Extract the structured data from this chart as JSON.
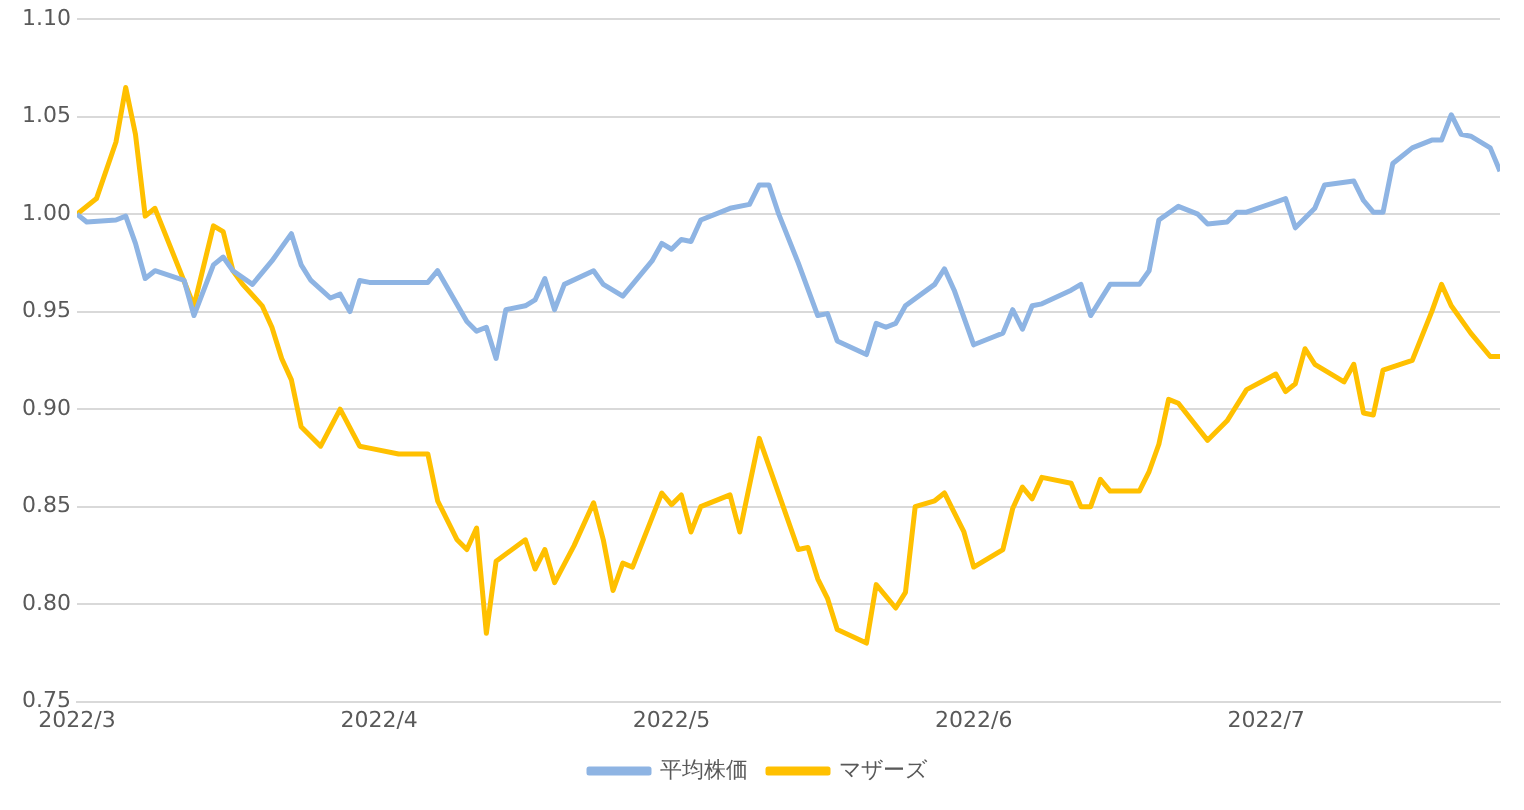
{
  "chart_data": {
    "type": "line",
    "xlim": [
      "2022-03-01",
      "2022-07-25"
    ],
    "xticks": [
      {
        "value": "2022-03-01",
        "label": "2022/3"
      },
      {
        "value": "2022-04-01",
        "label": "2022/4"
      },
      {
        "value": "2022-05-01",
        "label": "2022/5"
      },
      {
        "value": "2022-06-01",
        "label": "2022/6"
      },
      {
        "value": "2022-07-01",
        "label": "2022/7"
      }
    ],
    "ylim": [
      0.75,
      1.1
    ],
    "yticks": [
      {
        "value": 0.75,
        "label": "0.75"
      },
      {
        "value": 0.8,
        "label": "0.80"
      },
      {
        "value": 0.85,
        "label": "0.85"
      },
      {
        "value": 0.9,
        "label": "0.90"
      },
      {
        "value": 0.95,
        "label": "0.95"
      },
      {
        "value": 1.0,
        "label": "1.00"
      },
      {
        "value": 1.05,
        "label": "1.05"
      },
      {
        "value": 1.1,
        "label": "1.10"
      }
    ],
    "grid": "y",
    "legend": "bottom",
    "marker": "none",
    "line_style": "solid",
    "series": [
      {
        "name": "平均株価",
        "color": "#8eb4e3",
        "x": [
          "2022-03-01",
          "2022-03-02",
          "2022-03-05",
          "2022-03-06",
          "2022-03-07",
          "2022-03-08",
          "2022-03-09",
          "2022-03-12",
          "2022-03-13",
          "2022-03-15",
          "2022-03-16",
          "2022-03-17",
          "2022-03-19",
          "2022-03-21",
          "2022-03-23",
          "2022-03-24",
          "2022-03-25",
          "2022-03-27",
          "2022-03-28",
          "2022-03-29",
          "2022-03-30",
          "2022-03-31",
          "2022-04-06",
          "2022-04-07",
          "2022-04-10",
          "2022-04-11",
          "2022-04-12",
          "2022-04-13",
          "2022-04-14",
          "2022-04-16",
          "2022-04-17",
          "2022-04-18",
          "2022-04-19",
          "2022-04-20",
          "2022-04-23",
          "2022-04-24",
          "2022-04-26",
          "2022-04-29",
          "2022-04-30",
          "2022-05-01",
          "2022-05-02",
          "2022-05-03",
          "2022-05-04",
          "2022-05-07",
          "2022-05-09",
          "2022-05-10",
          "2022-05-11",
          "2022-05-12",
          "2022-05-14",
          "2022-05-16",
          "2022-05-17",
          "2022-05-18",
          "2022-05-21",
          "2022-05-22",
          "2022-05-23",
          "2022-05-24",
          "2022-05-25",
          "2022-05-28",
          "2022-05-29",
          "2022-05-30",
          "2022-06-01",
          "2022-06-03",
          "2022-06-04",
          "2022-06-05",
          "2022-06-06",
          "2022-06-07",
          "2022-06-08",
          "2022-06-11",
          "2022-06-12",
          "2022-06-13",
          "2022-06-15",
          "2022-06-18",
          "2022-06-19",
          "2022-06-20",
          "2022-06-22",
          "2022-06-24",
          "2022-06-25",
          "2022-06-27",
          "2022-06-28",
          "2022-06-29",
          "2022-07-03",
          "2022-07-04",
          "2022-07-06",
          "2022-07-07",
          "2022-07-10",
          "2022-07-11",
          "2022-07-12",
          "2022-07-13",
          "2022-07-14",
          "2022-07-16",
          "2022-07-18",
          "2022-07-19",
          "2022-07-20",
          "2022-07-21",
          "2022-07-22",
          "2022-07-24",
          "2022-07-25"
        ],
        "values": [
          1.0,
          0.996,
          0.997,
          0.999,
          0.985,
          0.967,
          0.971,
          0.966,
          0.948,
          0.974,
          0.978,
          0.971,
          0.964,
          0.976,
          0.99,
          0.974,
          0.966,
          0.957,
          0.959,
          0.95,
          0.966,
          0.965,
          0.965,
          0.971,
          0.945,
          0.94,
          0.942,
          0.926,
          0.951,
          0.953,
          0.956,
          0.967,
          0.951,
          0.964,
          0.971,
          0.964,
          0.958,
          0.976,
          0.985,
          0.982,
          0.987,
          0.986,
          0.997,
          1.003,
          1.005,
          1.015,
          1.015,
          1.0,
          0.975,
          0.948,
          0.949,
          0.935,
          0.928,
          0.944,
          0.942,
          0.944,
          0.953,
          0.964,
          0.972,
          0.961,
          0.933,
          0.937,
          0.939,
          0.951,
          0.941,
          0.953,
          0.954,
          0.961,
          0.964,
          0.948,
          0.964,
          0.964,
          0.971,
          0.997,
          1.004,
          1.0,
          0.995,
          0.996,
          1.001,
          1.001,
          1.008,
          0.993,
          1.003,
          1.015,
          1.017,
          1.007,
          1.001,
          1.001,
          1.026,
          1.034,
          1.038,
          1.038,
          1.051,
          1.041,
          1.04,
          1.034,
          1.022
        ]
      },
      {
        "name": "マザーズ",
        "color": "#ffc000",
        "x": [
          "2022-03-01",
          "2022-03-03",
          "2022-03-05",
          "2022-03-06",
          "2022-03-07",
          "2022-03-08",
          "2022-03-09",
          "2022-03-13",
          "2022-03-15",
          "2022-03-16",
          "2022-03-17",
          "2022-03-18",
          "2022-03-20",
          "2022-03-21",
          "2022-03-22",
          "2022-03-23",
          "2022-03-24",
          "2022-03-26",
          "2022-03-28",
          "2022-03-30",
          "2022-03-31",
          "2022-04-03",
          "2022-04-06",
          "2022-04-07",
          "2022-04-09",
          "2022-04-10",
          "2022-04-11",
          "2022-04-12",
          "2022-04-13",
          "2022-04-16",
          "2022-04-17",
          "2022-04-18",
          "2022-04-19",
          "2022-04-21",
          "2022-04-23",
          "2022-04-24",
          "2022-04-25",
          "2022-04-26",
          "2022-04-27",
          "2022-04-30",
          "2022-05-01",
          "2022-05-02",
          "2022-05-03",
          "2022-05-04",
          "2022-05-07",
          "2022-05-08",
          "2022-05-10",
          "2022-05-14",
          "2022-05-15",
          "2022-05-16",
          "2022-05-17",
          "2022-05-18",
          "2022-05-21",
          "2022-05-22",
          "2022-05-24",
          "2022-05-25",
          "2022-05-26",
          "2022-05-28",
          "2022-05-29",
          "2022-05-31",
          "2022-06-01",
          "2022-06-04",
          "2022-06-05",
          "2022-06-06",
          "2022-06-07",
          "2022-06-08",
          "2022-06-11",
          "2022-06-12",
          "2022-06-13",
          "2022-06-14",
          "2022-06-15",
          "2022-06-18",
          "2022-06-19",
          "2022-06-20",
          "2022-06-21",
          "2022-06-22",
          "2022-06-25",
          "2022-06-27",
          "2022-06-29",
          "2022-07-02",
          "2022-07-03",
          "2022-07-04",
          "2022-07-05",
          "2022-07-06",
          "2022-07-09",
          "2022-07-10",
          "2022-07-11",
          "2022-07-12",
          "2022-07-13",
          "2022-07-16",
          "2022-07-18",
          "2022-07-19",
          "2022-07-20",
          "2022-07-22",
          "2022-07-24",
          "2022-07-25"
        ],
        "values": [
          1.0,
          1.008,
          1.037,
          1.065,
          1.041,
          0.999,
          1.003,
          0.953,
          0.994,
          0.991,
          0.971,
          0.964,
          0.953,
          0.942,
          0.926,
          0.915,
          0.891,
          0.881,
          0.9,
          0.881,
          0.88,
          0.877,
          0.877,
          0.853,
          0.833,
          0.828,
          0.839,
          0.785,
          0.822,
          0.833,
          0.818,
          0.828,
          0.811,
          0.83,
          0.852,
          0.833,
          0.807,
          0.821,
          0.819,
          0.857,
          0.851,
          0.856,
          0.837,
          0.85,
          0.856,
          0.837,
          0.885,
          0.828,
          0.829,
          0.813,
          0.803,
          0.787,
          0.78,
          0.81,
          0.798,
          0.806,
          0.85,
          0.853,
          0.857,
          0.837,
          0.819,
          0.828,
          0.849,
          0.86,
          0.854,
          0.865,
          0.862,
          0.85,
          0.85,
          0.864,
          0.858,
          0.858,
          0.868,
          0.882,
          0.905,
          0.903,
          0.884,
          0.894,
          0.91,
          0.918,
          0.909,
          0.913,
          0.931,
          0.923,
          0.914,
          0.923,
          0.898,
          0.897,
          0.92,
          0.925,
          0.95,
          0.964,
          0.953,
          0.939,
          0.927,
          0.927
        ]
      }
    ]
  }
}
